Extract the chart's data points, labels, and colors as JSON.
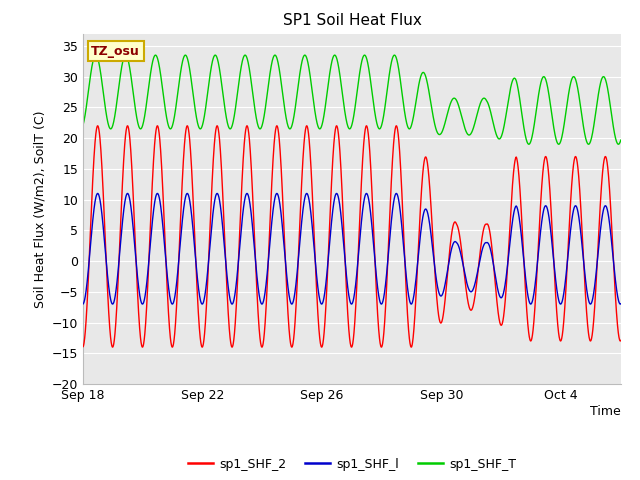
{
  "title": "SP1 Soil Heat Flux",
  "xlabel": "Time",
  "ylabel": "Soil Heat Flux (W/m2), SoilT (C)",
  "ylim": [
    -20,
    37
  ],
  "yticks": [
    -20,
    -15,
    -10,
    -5,
    0,
    5,
    10,
    15,
    20,
    25,
    30,
    35
  ],
  "xlim": [
    0,
    18
  ],
  "xtick_labels": [
    "Sep 18",
    "Sep 22",
    "Sep 26",
    "Sep 30",
    "Oct 4"
  ],
  "xtick_positions": [
    0,
    4,
    8,
    12,
    16
  ],
  "fig_bg_color": "#ffffff",
  "plot_bg_color": "#e8e8e8",
  "grid_color": "#ffffff",
  "tz_label": "TZ_osu",
  "tz_box_facecolor": "#ffffcc",
  "tz_box_edgecolor": "#ccaa00",
  "tz_text_color": "#8b0000",
  "legend_labels": [
    "sp1_SHF_2",
    "sp1_SHF_l",
    "sp1_SHF_T"
  ],
  "colors": [
    "#ff0000",
    "#0000cc",
    "#00cc00"
  ],
  "linewidth": 1.0,
  "title_fontsize": 11,
  "label_fontsize": 9,
  "tick_fontsize": 9,
  "legend_fontsize": 9
}
